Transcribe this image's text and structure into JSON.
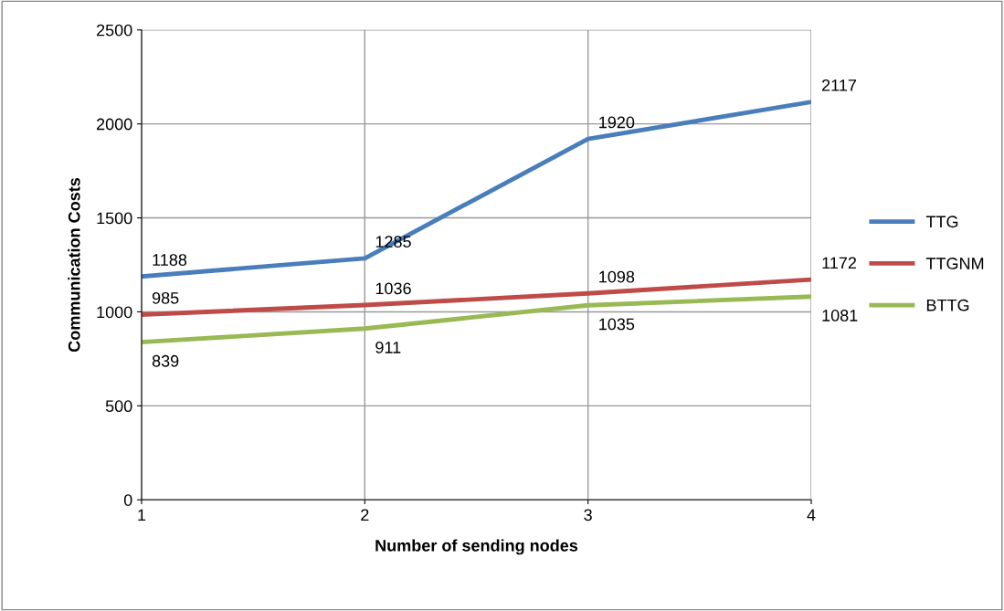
{
  "chart_data": {
    "type": "line",
    "xlabel": "Number of sending nodes",
    "ylabel": "Communication Costs",
    "x": [
      1,
      2,
      3,
      4
    ],
    "xlim": [
      1,
      4
    ],
    "xticks": [
      1,
      2,
      3,
      4
    ],
    "ylim": [
      0,
      2500
    ],
    "yticks": [
      0,
      500,
      1000,
      1500,
      2000,
      2500
    ],
    "series": [
      {
        "name": "TTG",
        "color": "#4a7ebb",
        "values": [
          1188,
          1285,
          1920,
          2117
        ]
      },
      {
        "name": "TTGNM",
        "color": "#be4b48",
        "values": [
          985,
          1036,
          1098,
          1172
        ]
      },
      {
        "name": "BTTG",
        "color": "#98b954",
        "values": [
          839,
          911,
          1035,
          1081
        ]
      }
    ],
    "data_labels": true,
    "grid": true,
    "legend": "right",
    "marker": "none",
    "line_style": "solid"
  }
}
